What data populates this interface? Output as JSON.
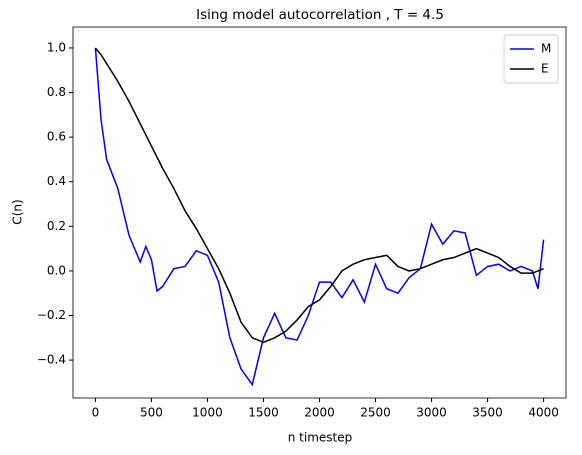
{
  "chart_data": {
    "type": "line",
    "title": "Ising model autocorrelation , T = 4.5",
    "x_label": "n timestep",
    "y_label": "C(n)",
    "x": [
      0,
      50,
      100,
      200,
      300,
      400,
      450,
      500,
      550,
      600,
      700,
      800,
      900,
      1000,
      1100,
      1200,
      1300,
      1400,
      1500,
      1600,
      1700,
      1800,
      1900,
      2000,
      2100,
      2200,
      2300,
      2400,
      2500,
      2600,
      2700,
      2800,
      2900,
      3000,
      3100,
      3200,
      3300,
      3400,
      3500,
      3600,
      3700,
      3800,
      3900,
      3950,
      4000
    ],
    "series": [
      {
        "name": "M",
        "color": "#0000ff",
        "values": [
          1.0,
          0.68,
          0.5,
          0.37,
          0.16,
          0.04,
          0.11,
          0.05,
          -0.09,
          -0.07,
          0.01,
          0.02,
          0.09,
          0.07,
          -0.05,
          -0.3,
          -0.44,
          -0.51,
          -0.3,
          -0.19,
          -0.3,
          -0.31,
          -0.2,
          -0.05,
          -0.05,
          -0.12,
          -0.04,
          -0.14,
          0.03,
          -0.08,
          -0.1,
          -0.03,
          0.01,
          0.21,
          0.12,
          0.18,
          0.17,
          -0.02,
          0.02,
          0.03,
          0.0,
          0.02,
          0.0,
          -0.08,
          0.14
        ]
      },
      {
        "name": "E",
        "color": "#000000",
        "values": [
          1.0,
          0.97,
          0.93,
          0.85,
          0.76,
          0.66,
          0.61,
          0.56,
          0.51,
          0.46,
          0.37,
          0.27,
          0.19,
          0.1,
          0.01,
          -0.1,
          -0.23,
          -0.3,
          -0.32,
          -0.3,
          -0.27,
          -0.22,
          -0.16,
          -0.13,
          -0.07,
          0.0,
          0.03,
          0.05,
          0.06,
          0.07,
          0.02,
          0.0,
          0.01,
          0.03,
          0.05,
          0.06,
          0.08,
          0.1,
          0.08,
          0.06,
          0.02,
          -0.01,
          -0.01,
          0.0,
          0.01
        ]
      }
    ],
    "xlim": [
      -200,
      4200
    ],
    "ylim": [
      -0.57,
      1.094
    ],
    "xticks": [
      0,
      500,
      1000,
      1500,
      2000,
      2500,
      3000,
      3500,
      4000
    ],
    "yticks": [
      {
        "value": -0.4,
        "label": "−0.4"
      },
      {
        "value": -0.2,
        "label": "−0.2"
      },
      {
        "value": 0,
        "label": "0.0"
      },
      {
        "value": 0.2,
        "label": "0.2"
      },
      {
        "value": 0.4,
        "label": "0.4"
      },
      {
        "value": 0.6,
        "label": "0.6"
      },
      {
        "value": 0.8,
        "label": "0.8"
      },
      {
        "value": 1.0,
        "label": "1.0"
      }
    ],
    "legend": "upper right",
    "grid": false
  }
}
